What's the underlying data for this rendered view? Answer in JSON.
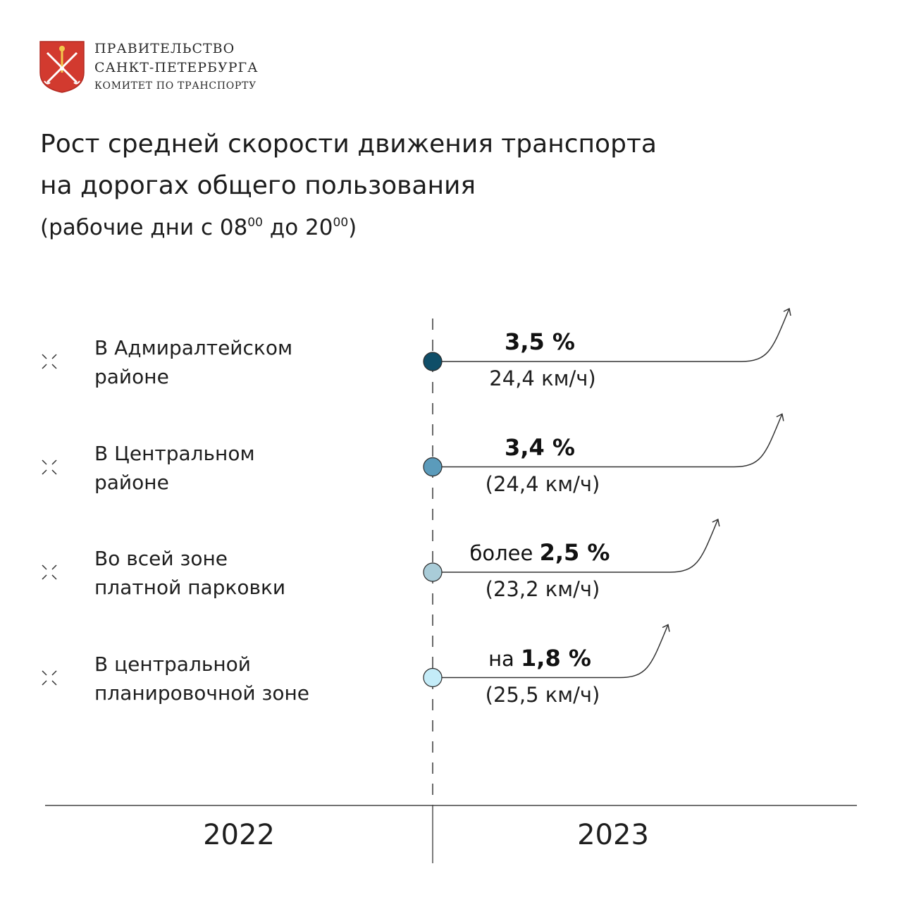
{
  "header": {
    "org_line_1": "ПРАВИТЕЛЬСТВО",
    "org_line_2": "САНКТ-ПЕТЕРБУРГА",
    "org_line_3": "КОМИТЕТ ПО ТРАНСПОРТУ",
    "emblem_icon": "spb-coat-of-arms-icon"
  },
  "title": {
    "line_1": "Рост средней скорости движения транспорта",
    "line_2": "на дорогах общего пользования",
    "subtitle_prefix": "(рабочие дни с 08",
    "subtitle_sup_1": "00",
    "subtitle_mid": " до 20",
    "subtitle_sup_2": "00",
    "subtitle_suffix": ")"
  },
  "chart_data": {
    "type": "line",
    "title": "Рост средней скорости движения транспорта на дорогах общего пользования",
    "categories": [
      {
        "line1": "В Адмиралтейском",
        "line2": "районе"
      },
      {
        "line1": "В Центральном",
        "line2": "районе"
      },
      {
        "line1": "Во всей зоне",
        "line2": "платной парковки"
      },
      {
        "line1": "В центральной",
        "line2": "планировочной зоне"
      }
    ],
    "x": [
      "2022",
      "2023"
    ],
    "series": [
      {
        "prefix": "",
        "value_label": "3,5 %",
        "value": 3.5,
        "speed_label": "24,4 км/ч)",
        "speed": 24.4,
        "color": "#0f4e68"
      },
      {
        "prefix": "",
        "value_label": "3,4 %",
        "value": 3.4,
        "speed_label": "(24,4 км/ч)",
        "speed": 24.4,
        "color": "#5b9bbb"
      },
      {
        "prefix": "более",
        "value_label": "2,5 %",
        "value": 2.5,
        "speed_label": "(23,2 км/ч)",
        "speed": 23.2,
        "color": "#a9ccd8"
      },
      {
        "prefix": "на",
        "value_label": "1,8 %",
        "value": 1.8,
        "speed_label": "(25,5 км/ч)",
        "speed": 25.5,
        "color": "#c4ecf8"
      }
    ],
    "colors": {
      "axis": "#444444",
      "text": "#1e1e1e"
    }
  }
}
